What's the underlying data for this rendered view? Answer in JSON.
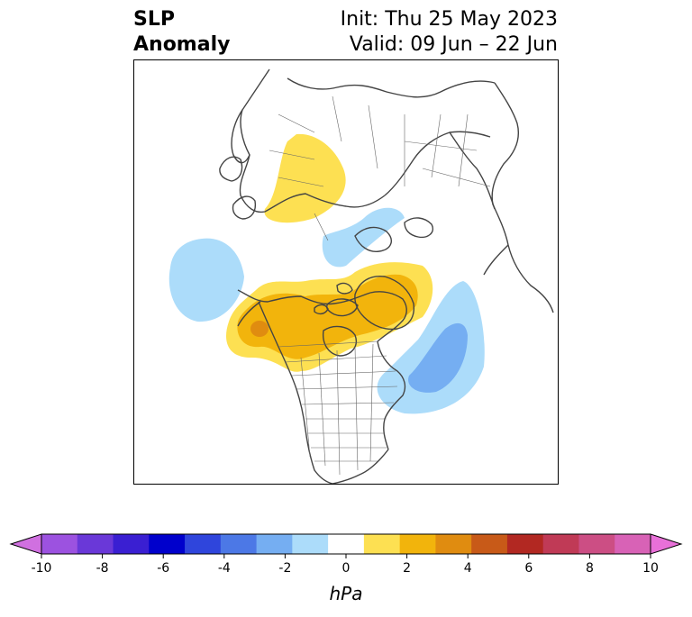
{
  "title": {
    "left_line1": "SLP",
    "left_line2": "Anomaly",
    "right_line1": "Init: Thu 25 May 2023",
    "right_line2": "Valid: 09 Jun – 22 Jun"
  },
  "colorbar": {
    "unit_label": "hPa",
    "ticks": [
      "-10",
      "-8",
      "-6",
      "-4",
      "-2",
      "0",
      "2",
      "4",
      "6",
      "8",
      "10"
    ],
    "colors": [
      "#d070e0",
      "#9c52e0",
      "#6a38d8",
      "#3a1fd2",
      "#0000cc",
      "#2f45dc",
      "#4c78e6",
      "#75aef2",
      "#acdcfa",
      "#ffffff",
      "#fde052",
      "#f2b40c",
      "#e08c10",
      "#c85a18",
      "#b22822",
      "#c03a56",
      "#cc4e84",
      "#d862b6",
      "#e870d8"
    ]
  },
  "map": {
    "contours": [
      {
        "name": "ne-canada-greenland-high",
        "value": 2,
        "color": "#fde052"
      },
      {
        "name": "ne-canada-greenland-high-core",
        "value": 4,
        "color": "#f2b40c"
      },
      {
        "name": "ne-pacific-high-core",
        "value": 6,
        "color": "#e08c10"
      },
      {
        "name": "north-atlantic-low",
        "value": -2,
        "color": "#acdcfa"
      },
      {
        "name": "north-atlantic-low-core",
        "value": -4,
        "color": "#75aef2"
      },
      {
        "name": "north-pacific-low",
        "value": -2,
        "color": "#acdcfa"
      },
      {
        "name": "siberia-high",
        "value": 2,
        "color": "#fde052"
      },
      {
        "name": "arctic-low",
        "value": -2,
        "color": "#acdcfa"
      }
    ]
  }
}
